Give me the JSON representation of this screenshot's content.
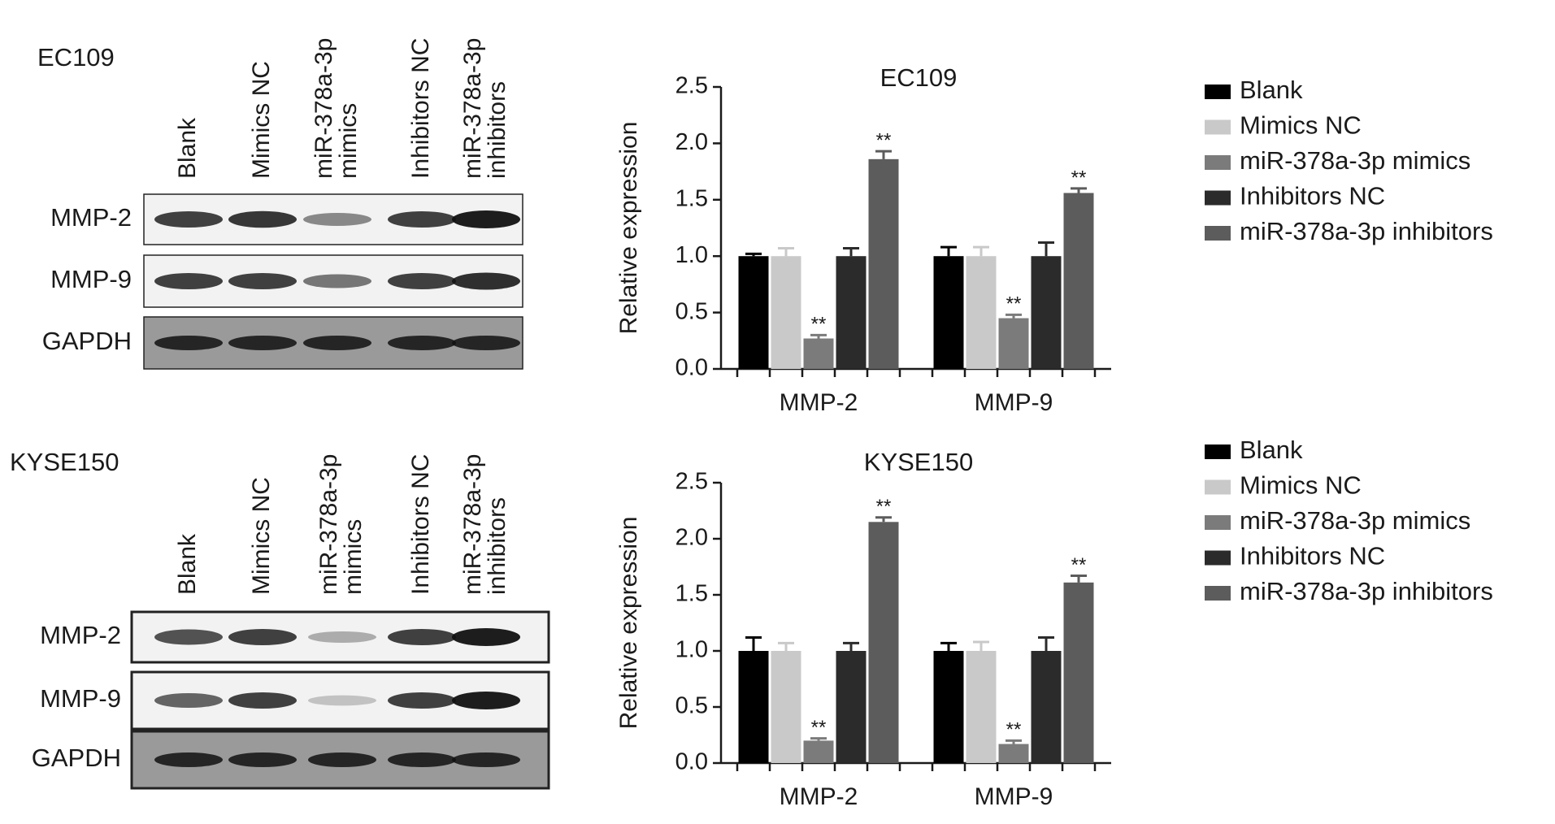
{
  "blots": [
    {
      "title": "EC109",
      "lanes": [
        [
          "Blank"
        ],
        [
          "Mimics NC"
        ],
        [
          "miR-378a-3p",
          "mimics"
        ],
        [
          "Inhibitors NC"
        ],
        [
          "miR-378a-3p",
          "inhibitors"
        ]
      ],
      "rows": [
        "MMP-2",
        "MMP-9",
        "GAPDH"
      ]
    },
    {
      "title": "KYSE150",
      "lanes": [
        [
          "Blank"
        ],
        [
          "Mimics NC"
        ],
        [
          "miR-378a-3p",
          "mimics"
        ],
        [
          "Inhibitors NC"
        ],
        [
          "miR-378a-3p",
          "inhibitors"
        ]
      ],
      "rows": [
        "MMP-2",
        "MMP-9",
        "GAPDH"
      ]
    }
  ],
  "chart_data": [
    {
      "type": "bar",
      "title": "EC109",
      "ylabel": "Relative expression",
      "categories": [
        "MMP-2",
        "MMP-9"
      ],
      "ylim": [
        0,
        2.5
      ],
      "yticks": [
        {
          "value": 0,
          "label": "0.0"
        },
        0.5,
        {
          "value": 1,
          "label": "1.0"
        },
        1.5,
        {
          "value": 2,
          "label": "2.0"
        },
        2.5
      ],
      "legend": "outside-right",
      "series": [
        {
          "name": "Blank",
          "color": "#000000",
          "values": [
            1.0,
            1.0
          ],
          "errors": [
            0.02,
            0.08
          ]
        },
        {
          "name": "Mimics NC",
          "color": "#c9c9c9",
          "values": [
            1.0,
            1.0
          ],
          "errors": [
            0.07,
            0.08
          ]
        },
        {
          "name": "miR-378a-3p mimics",
          "color": "#7b7b7b",
          "values": [
            0.27,
            0.45
          ],
          "errors": [
            0.03,
            0.03
          ],
          "annotations": [
            "**",
            "**"
          ]
        },
        {
          "name": "Inhibitors NC",
          "color": "#2b2b2b",
          "values": [
            1.0,
            1.0
          ],
          "errors": [
            0.07,
            0.12
          ]
        },
        {
          "name": "miR-378a-3p inhibitors",
          "color": "#5c5c5c",
          "values": [
            1.86,
            1.56
          ],
          "errors": [
            0.07,
            0.04
          ],
          "annotations": [
            "**",
            "**"
          ]
        }
      ]
    },
    {
      "type": "bar",
      "title": "KYSE150",
      "ylabel": "Relative expression",
      "categories": [
        "MMP-2",
        "MMP-9"
      ],
      "ylim": [
        0,
        2.5
      ],
      "yticks": [
        {
          "value": 0,
          "label": "0.0"
        },
        0.5,
        {
          "value": 1,
          "label": "1.0"
        },
        1.5,
        {
          "value": 2,
          "label": "2.0"
        },
        2.5
      ],
      "legend": "outside-right",
      "series": [
        {
          "name": "Blank",
          "color": "#000000",
          "values": [
            1.0,
            1.0
          ],
          "errors": [
            0.12,
            0.07
          ]
        },
        {
          "name": "Mimics NC",
          "color": "#c9c9c9",
          "values": [
            1.0,
            1.0
          ],
          "errors": [
            0.07,
            0.08
          ]
        },
        {
          "name": "miR-378a-3p mimics",
          "color": "#7b7b7b",
          "values": [
            0.2,
            0.17
          ],
          "errors": [
            0.02,
            0.03
          ],
          "annotations": [
            "**",
            "**"
          ]
        },
        {
          "name": "Inhibitors NC",
          "color": "#2b2b2b",
          "values": [
            1.0,
            1.0
          ],
          "errors": [
            0.07,
            0.12
          ]
        },
        {
          "name": "miR-378a-3p inhibitors",
          "color": "#5c5c5c",
          "values": [
            2.15,
            1.61
          ],
          "errors": [
            0.04,
            0.06
          ],
          "annotations": [
            "**",
            "**"
          ]
        }
      ]
    }
  ]
}
